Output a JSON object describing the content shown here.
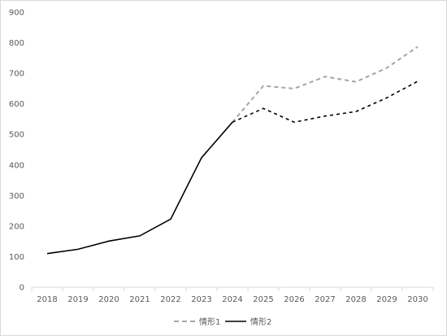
{
  "chart_data": {
    "type": "line",
    "title": "",
    "xlabel": "",
    "ylabel": "",
    "x": [
      "2018",
      "2019",
      "2020",
      "2021",
      "2022",
      "2023",
      "2024",
      "2025",
      "2026",
      "2027",
      "2028",
      "2029",
      "2030"
    ],
    "ylim": [
      0,
      900
    ],
    "yticks": [
      0,
      100,
      200,
      300,
      400,
      500,
      600,
      700,
      800,
      900
    ],
    "grid": false,
    "legend_position": "bottom",
    "colors": {
      "series1": "#a6a6a6",
      "series2": "#000000",
      "axis": "#d9d9d9"
    },
    "series": [
      {
        "name": "情形1",
        "line_style": "dashed",
        "color": "#a6a6a6",
        "values": [
          110,
          124,
          151,
          168,
          223,
          424,
          540,
          659,
          650,
          689,
          672,
          718,
          787
        ]
      },
      {
        "name": "情形2",
        "line_style": "solid-then-dashed",
        "color": "#000000",
        "values": [
          110,
          124,
          151,
          168,
          223,
          424,
          540,
          585,
          540,
          560,
          575,
          620,
          674
        ]
      }
    ]
  }
}
